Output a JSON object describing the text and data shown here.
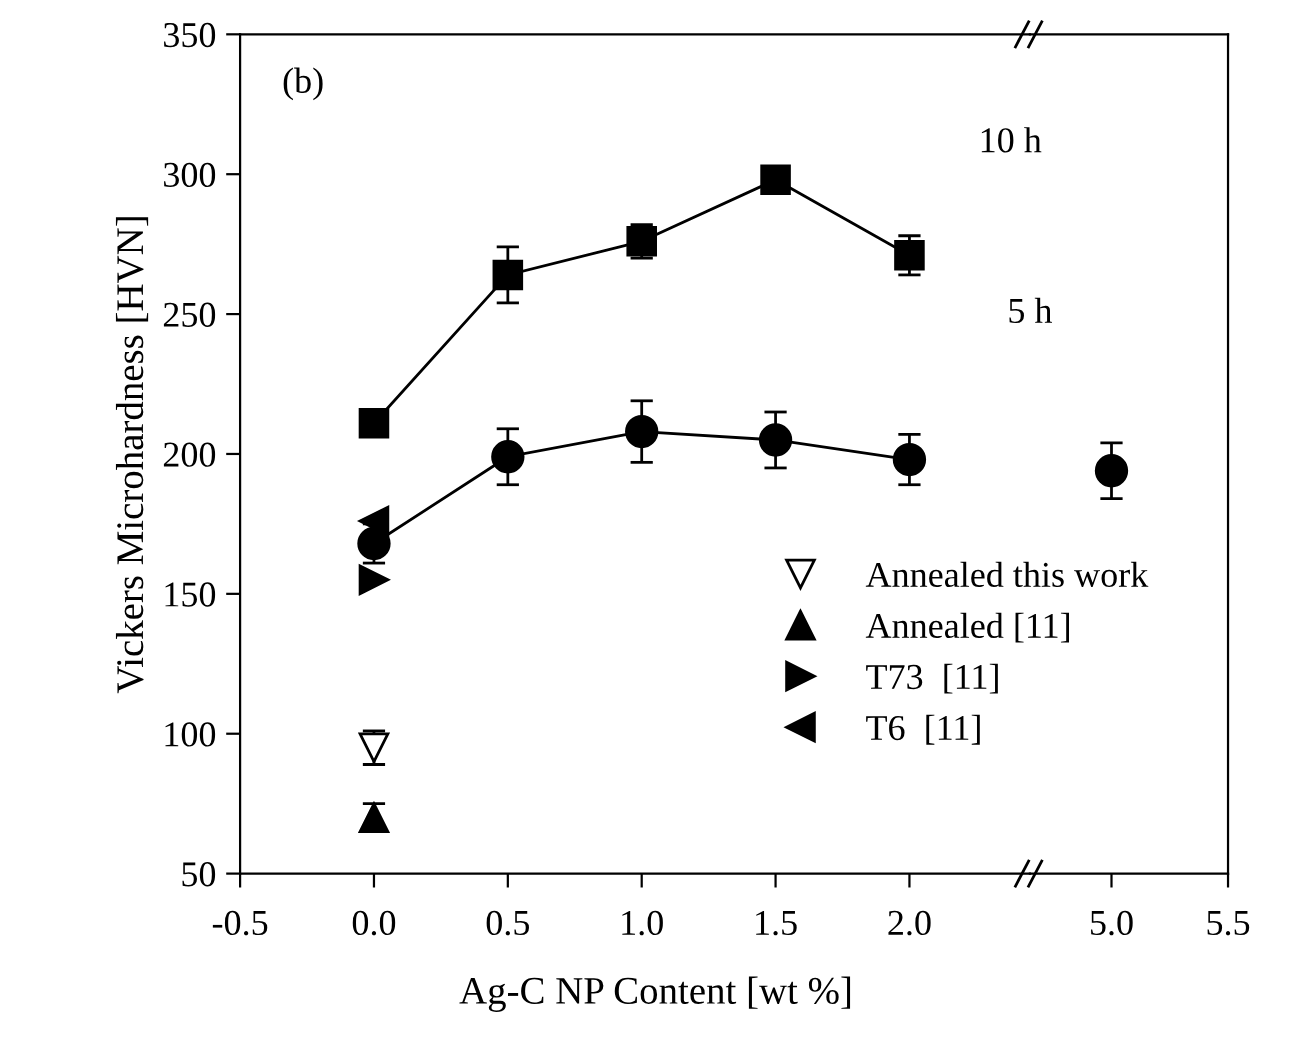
{
  "chart_data": [
    {
      "type": "line",
      "xlabel": "Ag-C NP Content [wt %]",
      "ylabel": "Vickers Microhardness [HVN]",
      "annotations": [
        "(b)",
        "10 h",
        "5 h"
      ],
      "xlim": [
        -0.5,
        2.45
      ],
      "xticks": [
        {
          "value": -0.5,
          "label": "-0.5"
        },
        {
          "value": 0.0,
          "label": "0.0"
        },
        {
          "value": 0.5,
          "label": "0.5"
        },
        {
          "value": 1.0,
          "label": "1.0"
        },
        {
          "value": 1.5,
          "label": "1.5"
        },
        {
          "value": 2.0,
          "label": "2.0"
        }
      ],
      "ylim": [
        50,
        350
      ],
      "yticks": [
        50,
        100,
        150,
        200,
        250,
        300,
        350
      ],
      "grid": false,
      "legend": "bottom right",
      "series": [
        {
          "color": "#000000",
          "marker": "square",
          "x": [
            0.0,
            0.5,
            1.0,
            1.5,
            2.0
          ],
          "values": [
            211,
            264,
            276,
            298,
            271
          ],
          "errors": [
            3,
            10,
            6,
            3,
            7
          ]
        },
        {
          "color": "#000000",
          "marker": "circle",
          "x": [
            0.0,
            0.5,
            1.0,
            1.5,
            2.0
          ],
          "values": [
            168,
            199,
            208,
            205,
            198
          ],
          "errors": [
            7,
            10,
            11,
            10,
            9
          ]
        },
        {
          "name": "Annealed this work",
          "color": "#000000",
          "marker": "triangle_down_open",
          "x": [
            0.0
          ],
          "values": [
            95
          ],
          "errors": [
            6
          ]
        },
        {
          "name": "Annealed [11]",
          "color": "#000000",
          "marker": "triangle",
          "x": [
            0.0
          ],
          "values": [
            70
          ],
          "errors": [
            5
          ]
        },
        {
          "name": "T73  [11]",
          "color": "#000000",
          "marker": "triangle_right",
          "x": [
            0.0
          ],
          "values": [
            155
          ]
        },
        {
          "name": "T6  [11]",
          "color": "#000000",
          "marker": "triangle_left",
          "x": [
            0.0
          ],
          "values": [
            176
          ]
        }
      ]
    },
    {
      "type": "line",
      "xlim": [
        4.65,
        5.5
      ],
      "xticks": [
        {
          "value": 5.0,
          "label": "5.0"
        },
        {
          "value": 5.5,
          "label": "5.5"
        }
      ],
      "ylim": [
        50,
        350
      ],
      "tick_labels": "x",
      "grid": false,
      "series": [
        {
          "color": "#000000",
          "marker": "circle",
          "x": [
            5.0
          ],
          "values": [
            194
          ],
          "errors": [
            10
          ]
        }
      ]
    }
  ]
}
